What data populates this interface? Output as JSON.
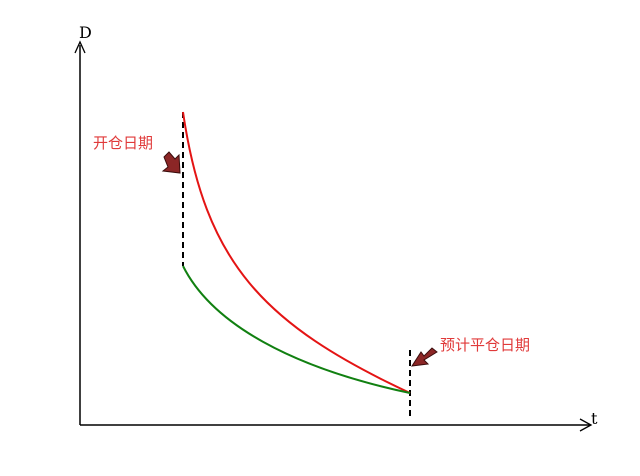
{
  "axes": {
    "y_label": "D",
    "x_label": "t"
  },
  "annotations": {
    "open_date": "开仓日期",
    "expected_close_date": "预计平仓日期"
  },
  "colors": {
    "upper_curve": "#e41414",
    "lower_curve": "#118011",
    "annotation_text": "#e03a3a",
    "arrow_fill": "#8b2626",
    "axis": "#000000"
  },
  "icons": {
    "open_marker": "arrow-down-right-icon",
    "close_marker": "arrow-down-left-icon"
  }
}
